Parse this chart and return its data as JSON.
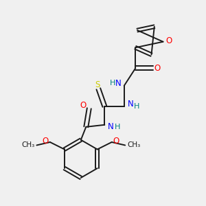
{
  "background_color": "#f0f0f0",
  "bond_color": "#1a1a1a",
  "N_color": "#0000ff",
  "O_color": "#ff0000",
  "S_color": "#cccc00",
  "H_color": "#008080",
  "fig_size": [
    3.0,
    3.0
  ],
  "dpi": 100,
  "xlim": [
    0,
    10
  ],
  "ylim": [
    0,
    10
  ]
}
